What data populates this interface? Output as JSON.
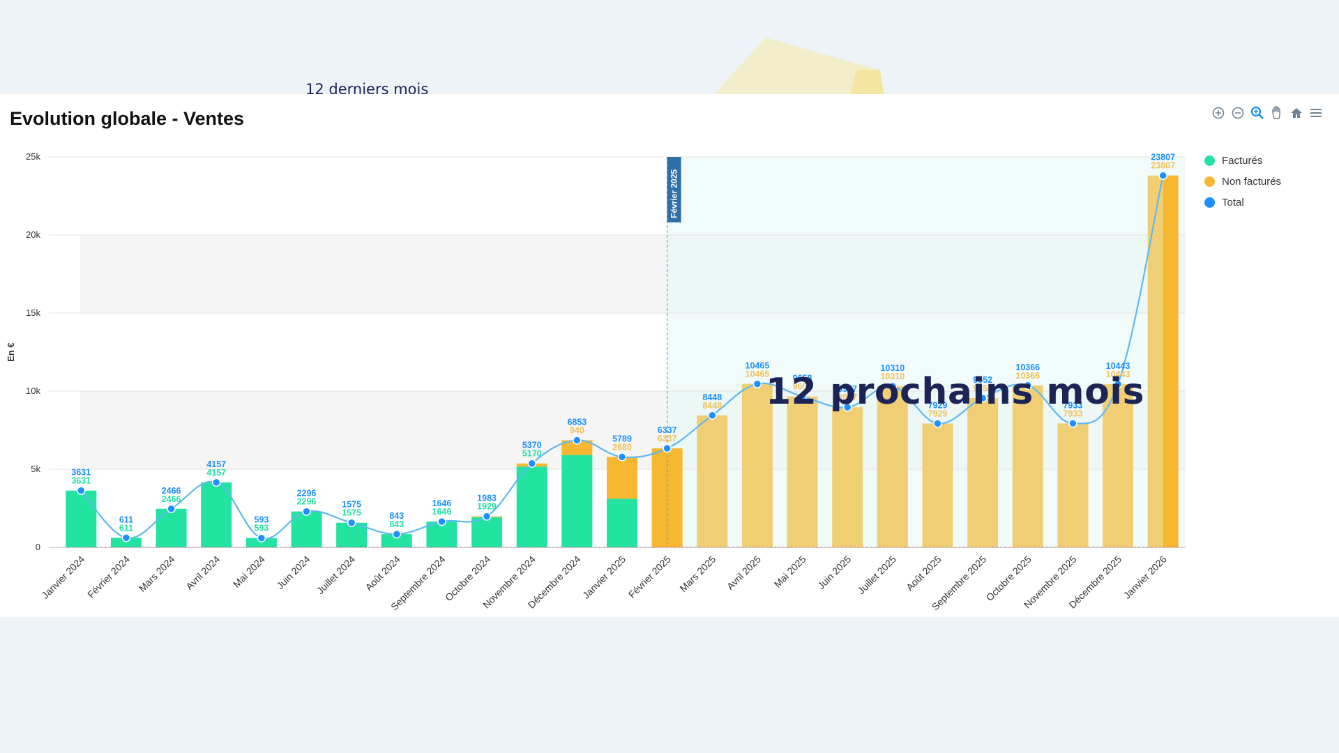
{
  "caption_top": "12 derniers mois",
  "overlay_label": "12 prochains mois",
  "chart": {
    "title": "Evolution globale - Ventes",
    "toolbar_icons": [
      "zoom-in-icon",
      "zoom-out-icon",
      "selection-zoom-icon",
      "pan-icon",
      "home-icon",
      "menu-icon"
    ],
    "legend": [
      {
        "label": "Facturés",
        "color": "#22e3a0"
      },
      {
        "label": "Non facturés",
        "color": "#f7b731"
      },
      {
        "label": "Total",
        "color": "#1e90ff"
      }
    ],
    "forecast_marker": "Février 2025"
  },
  "chart_data": {
    "type": "bar",
    "title": "Evolution globale - Ventes",
    "ylabel": "En €",
    "ylim": [
      0,
      25000
    ],
    "yticks": [
      "0",
      "5k",
      "10k",
      "15k",
      "20k",
      "25k"
    ],
    "yticks_values": [
      0,
      5000,
      10000,
      15000,
      20000,
      25000
    ],
    "categories": [
      "Janvier 2024",
      "Février 2024",
      "Mars 2024",
      "Avril 2024",
      "Mai 2024",
      "Juin 2024",
      "Juillet 2024",
      "Août 2024",
      "Septembre 2024",
      "Octobre 2024",
      "Novembre 2024",
      "Décembre 2024",
      "Janvier 2025",
      "Février 2025",
      "Mars 2025",
      "Avril 2025",
      "Mai 2025",
      "Juin 2025",
      "Juillet 2025",
      "Août 2025",
      "Septembre 2025",
      "Octobre 2025",
      "Novembre 2025",
      "Décembre 2025",
      "Janvier 2026"
    ],
    "series": [
      {
        "name": "Facturés",
        "type": "bar",
        "stack": true,
        "values": [
          3631,
          611,
          2466,
          4157,
          593,
          2296,
          1575,
          843,
          1646,
          1929,
          5170,
          5913,
          3109,
          0,
          0,
          0,
          0,
          0,
          0,
          0,
          0,
          0,
          0,
          0,
          0
        ]
      },
      {
        "name": "Non facturés",
        "type": "bar",
        "stack": true,
        "values": [
          0,
          0,
          0,
          0,
          0,
          0,
          0,
          0,
          0,
          54,
          200,
          940,
          2680,
          6337,
          8448,
          10465,
          9658,
          8967,
          10310,
          7929,
          9552,
          10366,
          7933,
          10443,
          23807
        ]
      },
      {
        "name": "Total",
        "type": "line",
        "values": [
          3631,
          611,
          2466,
          4157,
          593,
          2296,
          1575,
          843,
          1646,
          1983,
          5370,
          6853,
          5789,
          6337,
          8448,
          10465,
          9658,
          8967,
          10310,
          7929,
          9552,
          10366,
          7933,
          10443,
          23807
        ]
      }
    ],
    "bar_labels_facturés": [
      "3631",
      "611",
      "2466",
      "4157",
      "593",
      "2296",
      "1575",
      "843",
      "1646",
      "1929",
      "5170",
      "5913",
      "3109",
      "",
      "",
      "",
      "",
      "",
      "",
      "",
      "",
      "",
      "",
      "",
      ""
    ],
    "bar_labels_non_facturés": [
      "",
      "",
      "",
      "",
      "",
      "",
      "",
      "",
      "",
      "",
      "",
      "940",
      "2680",
      "6337",
      "8448",
      "10465",
      "9658",
      "8967",
      "10310",
      "7929",
      "9552",
      "10366",
      "7933",
      "10443",
      "23807"
    ],
    "forecast_start_index": 13,
    "colors": {
      "factures": "#22e3a0",
      "non_factures": "#f7b731",
      "forecast": "#f0cf74",
      "total": "#1e90ff",
      "line": "#5fb8f2"
    }
  }
}
